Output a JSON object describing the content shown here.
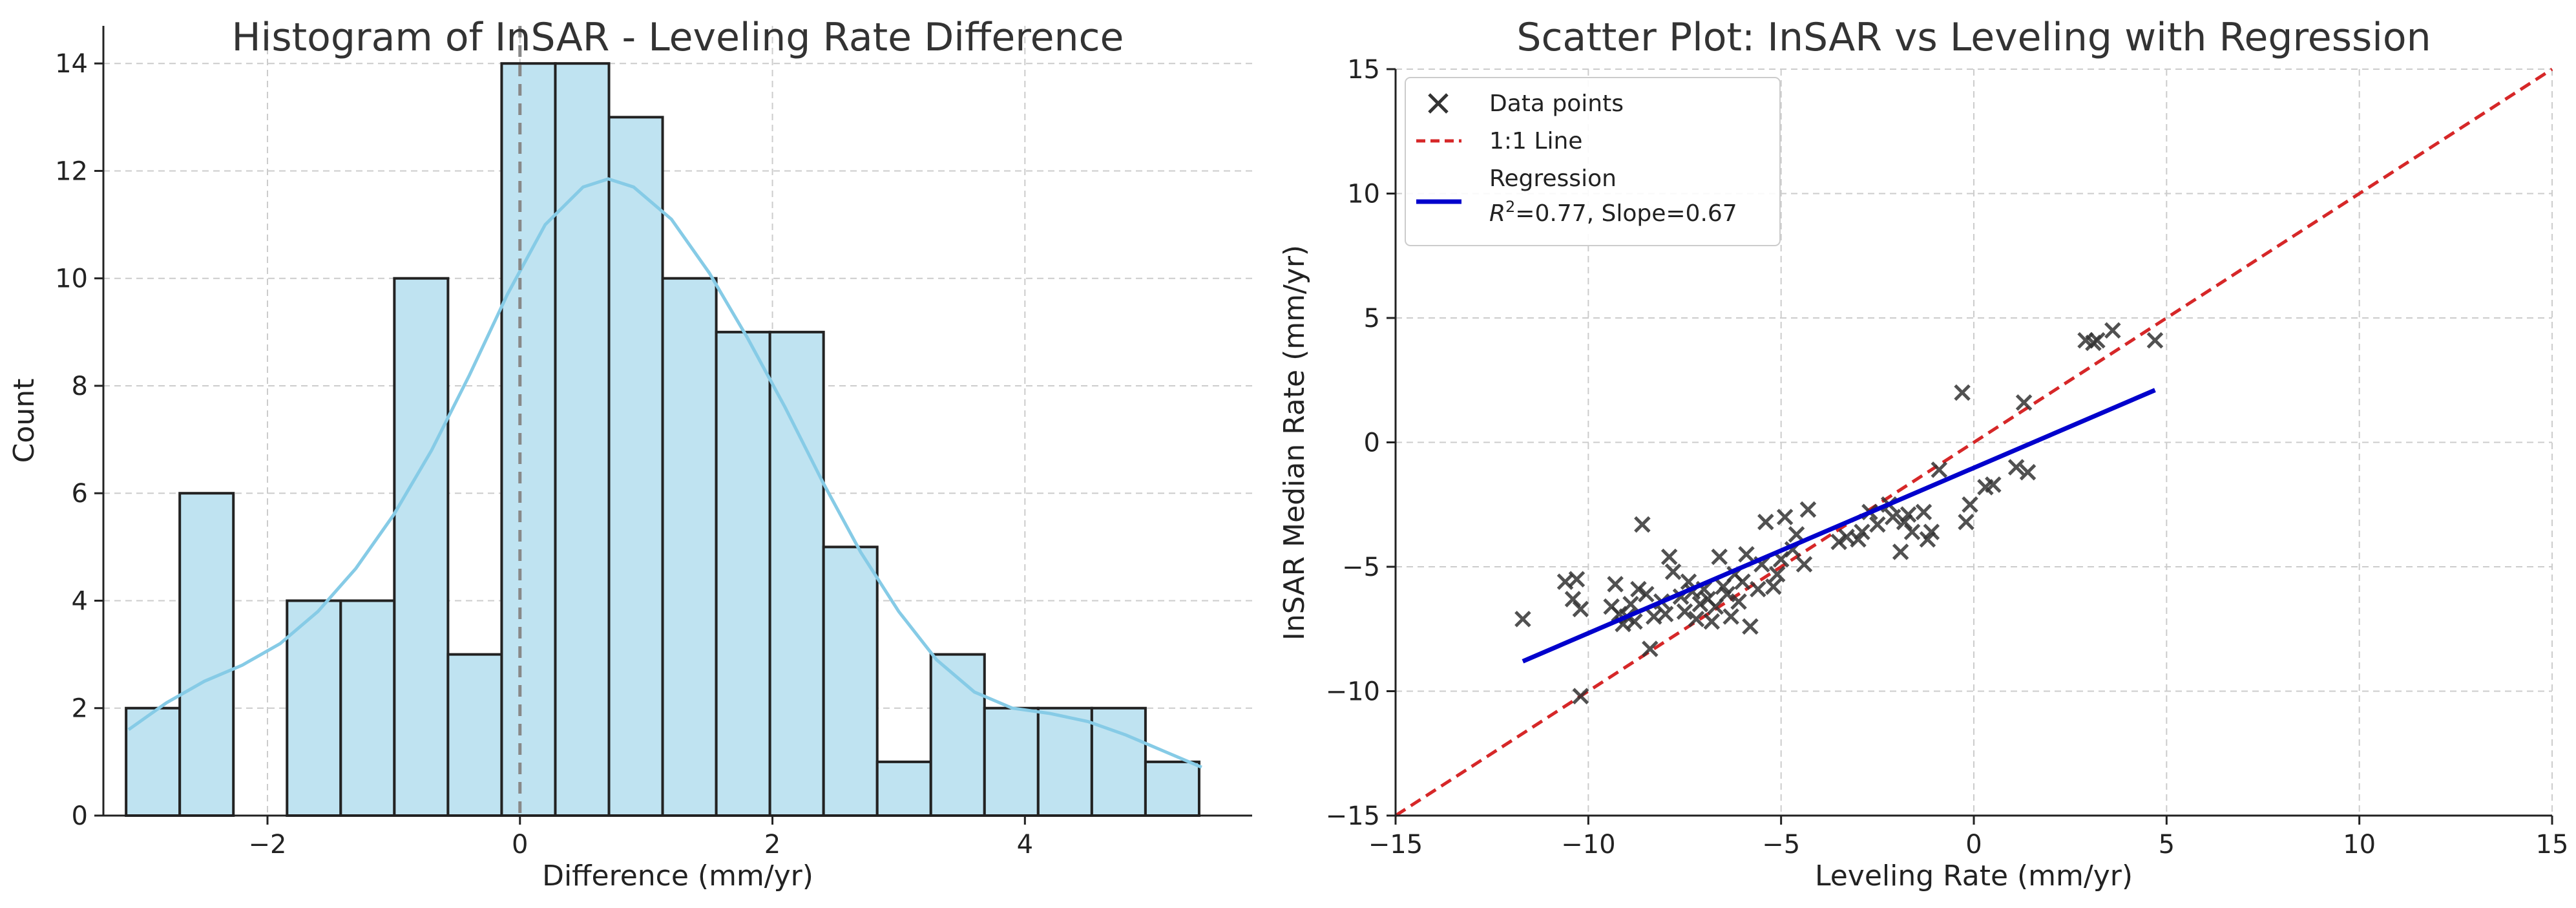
{
  "colors": {
    "hist_fill": "#bfe3f1",
    "hist_edge": "#222222",
    "kde": "#86cbe6",
    "zero_line": "#888888",
    "points": "#333333",
    "one_to_one": "#d62728",
    "regression": "#0000cc"
  },
  "chart_data": [
    {
      "type": "histogram",
      "title": "Histogram of InSAR - Leveling Rate Difference",
      "xlabel": "Difference (mm/yr)",
      "ylabel": "Count",
      "xlim": [
        -3.3,
        5.8
      ],
      "ylim": [
        0,
        14.7
      ],
      "xticks": [
        -2,
        0,
        2,
        4
      ],
      "xtick_labels": [
        "−2",
        "0",
        "2",
        "4"
      ],
      "yticks": [
        0,
        2,
        4,
        6,
        8,
        10,
        12,
        14
      ],
      "ytick_labels": [
        "0",
        "2",
        "4",
        "6",
        "8",
        "10",
        "12",
        "14"
      ],
      "bin_edges": [
        -3.12,
        -2.695,
        -2.27,
        -1.845,
        -1.42,
        -0.995,
        -0.57,
        -0.145,
        0.28,
        0.705,
        1.13,
        1.555,
        1.98,
        2.405,
        2.83,
        3.255,
        3.68,
        4.105,
        4.53,
        4.955,
        5.38
      ],
      "counts": [
        2,
        6,
        0,
        4,
        4,
        10,
        3,
        14,
        14,
        13,
        10,
        9,
        9,
        5,
        1,
        3,
        2,
        2,
        2,
        1
      ],
      "reference_line_x": 0,
      "kde": {
        "x": [
          -3.1,
          -2.8,
          -2.5,
          -2.2,
          -1.9,
          -1.6,
          -1.3,
          -1.0,
          -0.7,
          -0.4,
          -0.1,
          0.2,
          0.5,
          0.7,
          0.9,
          1.2,
          1.5,
          1.8,
          2.1,
          2.4,
          2.7,
          3.0,
          3.3,
          3.6,
          3.9,
          4.2,
          4.5,
          4.8,
          5.1,
          5.4
        ],
        "y": [
          1.6,
          2.1,
          2.5,
          2.8,
          3.2,
          3.8,
          4.6,
          5.6,
          6.8,
          8.2,
          9.7,
          11.0,
          11.7,
          11.85,
          11.7,
          11.1,
          10.1,
          8.9,
          7.6,
          6.2,
          4.9,
          3.8,
          2.9,
          2.3,
          2.0,
          1.9,
          1.75,
          1.5,
          1.2,
          0.9
        ]
      }
    },
    {
      "type": "scatter",
      "title": "Scatter Plot: InSAR vs Leveling with Regression",
      "xlabel": "Leveling Rate (mm/yr)",
      "ylabel": "InSAR Median Rate (mm/yr)",
      "xlim": [
        -15,
        15
      ],
      "ylim": [
        -15,
        15
      ],
      "xticks": [
        -15,
        -10,
        -5,
        0,
        5,
        10,
        15
      ],
      "xtick_labels": [
        "−15",
        "−10",
        "−5",
        "0",
        "5",
        "10",
        "15"
      ],
      "yticks": [
        -15,
        -10,
        -5,
        0,
        5,
        10,
        15
      ],
      "ytick_labels": [
        "−15",
        "−10",
        "−5",
        "0",
        "5",
        "10",
        "15"
      ],
      "legend_location": "top-left",
      "legend": {
        "points": "Data points",
        "one_to_one": "1:1 Line",
        "regression": "Regression",
        "regression_stats_prefix": "R",
        "regression_stats_exp": "2",
        "regression_stats_rest": "=0.77, Slope=0.67"
      },
      "regression": {
        "slope": 0.67,
        "r2": 0.77,
        "x_range": [
          -11.7,
          4.7
        ],
        "y_range": [
          -8.8,
          2.1
        ]
      },
      "one_to_one": {
        "x": [
          -15,
          15
        ],
        "y": [
          -15,
          15
        ]
      },
      "points": [
        [
          -11.7,
          -7.1
        ],
        [
          -10.6,
          -5.6
        ],
        [
          -10.4,
          -6.3
        ],
        [
          -10.3,
          -5.5
        ],
        [
          -10.2,
          -6.7
        ],
        [
          -10.2,
          -10.2
        ],
        [
          -9.4,
          -6.6
        ],
        [
          -9.3,
          -5.7
        ],
        [
          -9.2,
          -6.9
        ],
        [
          -9.1,
          -7.3
        ],
        [
          -9.0,
          -7.0
        ],
        [
          -8.9,
          -6.5
        ],
        [
          -8.8,
          -7.2
        ],
        [
          -8.7,
          -5.9
        ],
        [
          -8.6,
          -3.3
        ],
        [
          -8.5,
          -6.1
        ],
        [
          -8.4,
          -8.3
        ],
        [
          -8.3,
          -7.0
        ],
        [
          -8.1,
          -6.4
        ],
        [
          -8.0,
          -6.9
        ],
        [
          -7.9,
          -4.6
        ],
        [
          -7.8,
          -5.2
        ],
        [
          -7.6,
          -6.2
        ],
        [
          -7.5,
          -6.8
        ],
        [
          -7.4,
          -5.6
        ],
        [
          -7.3,
          -6.0
        ],
        [
          -7.2,
          -7.1
        ],
        [
          -7.1,
          -6.5
        ],
        [
          -7.0,
          -5.9
        ],
        [
          -6.9,
          -6.3
        ],
        [
          -6.8,
          -7.2
        ],
        [
          -6.7,
          -6.6
        ],
        [
          -6.6,
          -4.6
        ],
        [
          -6.5,
          -5.8
        ],
        [
          -6.4,
          -6.1
        ],
        [
          -6.3,
          -7.0
        ],
        [
          -6.2,
          -5.3
        ],
        [
          -6.1,
          -6.4
        ],
        [
          -6.0,
          -5.6
        ],
        [
          -5.9,
          -4.5
        ],
        [
          -5.8,
          -7.4
        ],
        [
          -5.6,
          -5.9
        ],
        [
          -5.5,
          -4.9
        ],
        [
          -5.4,
          -3.2
        ],
        [
          -5.2,
          -5.8
        ],
        [
          -5.1,
          -5.3
        ],
        [
          -5.0,
          -4.7
        ],
        [
          -4.9,
          -3.0
        ],
        [
          -4.7,
          -4.3
        ],
        [
          -4.6,
          -3.7
        ],
        [
          -4.4,
          -4.9
        ],
        [
          -4.3,
          -2.7
        ],
        [
          -3.5,
          -4.0
        ],
        [
          -3.3,
          -3.8
        ],
        [
          -3.0,
          -3.9
        ],
        [
          -2.9,
          -3.6
        ],
        [
          -2.7,
          -2.8
        ],
        [
          -2.5,
          -3.3
        ],
        [
          -2.2,
          -2.5
        ],
        [
          -2.1,
          -3.0
        ],
        [
          -1.9,
          -4.4
        ],
        [
          -1.8,
          -3.2
        ],
        [
          -1.7,
          -2.9
        ],
        [
          -1.6,
          -3.6
        ],
        [
          -1.3,
          -2.8
        ],
        [
          -1.2,
          -3.9
        ],
        [
          -1.1,
          -3.6
        ],
        [
          -0.9,
          -1.1
        ],
        [
          -0.3,
          2.0
        ],
        [
          -0.2,
          -3.2
        ],
        [
          -0.1,
          -2.5
        ],
        [
          0.3,
          -1.8
        ],
        [
          0.5,
          -1.7
        ],
        [
          1.1,
          -1.0
        ],
        [
          1.3,
          1.6
        ],
        [
          1.4,
          -1.2
        ],
        [
          2.9,
          4.1
        ],
        [
          3.1,
          4.0
        ],
        [
          3.2,
          4.1
        ],
        [
          3.6,
          4.5
        ],
        [
          4.7,
          4.1
        ]
      ]
    }
  ]
}
